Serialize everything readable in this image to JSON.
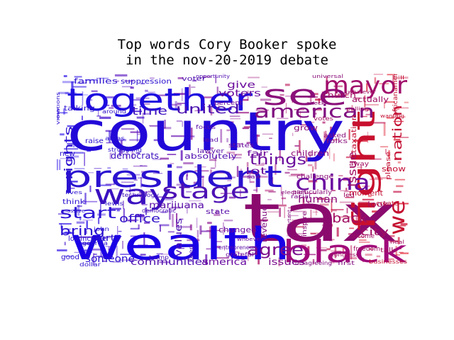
{
  "chart_data": {
    "type": "wordcloud",
    "title_lines": [
      "Top words Cory Booker spoke",
      "in the nov-20-2019 debate"
    ],
    "color_gradient": [
      "#1a00e6",
      "#8b0a8a",
      "#e01020"
    ],
    "words": [
      {
        "text": "country",
        "weight": 100,
        "color": "#2208d8"
      },
      {
        "text": "tax",
        "weight": 96,
        "color": "#8b0a6e"
      },
      {
        "text": "wealth",
        "weight": 72,
        "color": "#1a00e6"
      },
      {
        "text": "president",
        "weight": 58,
        "color": "#2a12d0"
      },
      {
        "text": "together",
        "weight": 56,
        "color": "#1e0be0"
      },
      {
        "text": "black",
        "weight": 50,
        "color": "#a0087a"
      },
      {
        "text": "see",
        "weight": 46,
        "color": "#8a0f7a"
      },
      {
        "text": "fight",
        "weight": 44,
        "color": "#c8102e"
      },
      {
        "text": "way",
        "weight": 40,
        "color": "#3a10c0"
      },
      {
        "text": "we",
        "weight": 36,
        "color": "#c41030"
      },
      {
        "text": "mayor",
        "weight": 34,
        "color": "#a00c6a"
      },
      {
        "text": "china",
        "weight": 30,
        "color": "#6a0aa0"
      },
      {
        "text": "stage",
        "weight": 28,
        "color": "#4c10b4"
      },
      {
        "text": "american",
        "weight": 26,
        "color": "#800e80"
      },
      {
        "text": "agree",
        "weight": 24,
        "color": "#7a0c8c"
      },
      {
        "text": "start",
        "weight": 21,
        "color": "#2a10d4"
      },
      {
        "text": "things",
        "weight": 20,
        "color": "#6a0c9c"
      },
      {
        "text": "nation",
        "weight": 19,
        "color": "#c41236"
      },
      {
        "text": "back",
        "weight": 18,
        "color": "#a00e62"
      },
      {
        "text": "united",
        "weight": 17,
        "color": "#4a10b0"
      },
      {
        "text": "time",
        "weight": 17,
        "color": "#3c10c0"
      },
      {
        "text": "issue",
        "weight": 16,
        "color": "#a00e62"
      },
      {
        "text": "rights",
        "weight": 16,
        "color": "#2a10d0"
      },
      {
        "text": "office",
        "weight": 15,
        "color": "#3010c8"
      },
      {
        "text": "bring",
        "weight": 15,
        "color": "#2a10d0"
      },
      {
        "text": "someone",
        "weight": 13,
        "color": "#2a10d0"
      },
      {
        "text": "communities",
        "weight": 13,
        "color": "#5010b0"
      },
      {
        "text": "america",
        "weight": 13,
        "color": "#6a0ca0"
      },
      {
        "text": "marijuana",
        "weight": 12,
        "color": "#5a10a8"
      },
      {
        "text": "values",
        "weight": 12,
        "color": "#4a10b4"
      },
      {
        "text": "city",
        "weight": 13,
        "color": "#a00e62"
      },
      {
        "text": "human",
        "weight": 13,
        "color": "#8a0e7a"
      },
      {
        "text": "issues",
        "weight": 12,
        "color": "#7a0c8c"
      },
      {
        "text": "give",
        "weight": 12,
        "color": "#6a0c9c"
      },
      {
        "text": "voters",
        "weight": 12,
        "color": "#6a0c9c"
      },
      {
        "text": "lot",
        "weight": 12,
        "color": "#6a0c9c"
      },
      {
        "text": "party",
        "weight": 11,
        "color": "#2a10d0"
      },
      {
        "text": "democrats",
        "weight": 11,
        "color": "#3c10c0"
      },
      {
        "text": "changed",
        "weight": 11,
        "color": "#6a0c9c"
      },
      {
        "text": "revenue",
        "weight": 11,
        "color": "#800e80"
      },
      {
        "text": "families",
        "weight": 10,
        "color": "#2a10d0"
      },
      {
        "text": "absolutely",
        "weight": 10,
        "color": "#5010b0"
      },
      {
        "text": "church",
        "weight": 10,
        "color": "#a00e62"
      },
      {
        "text": "actually",
        "weight": 10,
        "color": "#a00e62"
      },
      {
        "text": "show",
        "weight": 10,
        "color": "#c41236"
      },
      {
        "text": "look",
        "weight": 10,
        "color": "#a00e62"
      },
      {
        "text": "moment",
        "weight": 10,
        "color": "#c41236"
      },
      {
        "text": "children",
        "weight": 10,
        "color": "#8a0e7a"
      },
      {
        "text": "grow",
        "weight": 10,
        "color": "#8a0e7a"
      },
      {
        "text": "fair",
        "weight": 10,
        "color": "#6a0c9c"
      },
      {
        "text": "state",
        "weight": 9,
        "color": "#5a10a8"
      },
      {
        "text": "taxation",
        "weight": 9,
        "color": "#c41236"
      },
      {
        "text": "suppression",
        "weight": 9,
        "color": "#2a10d0"
      },
      {
        "text": "talking",
        "weight": 9,
        "color": "#2a10d0"
      },
      {
        "text": "lowincome",
        "weight": 9,
        "color": "#2a10d0"
      },
      {
        "text": "raise",
        "weight": 9,
        "color": "#2a10d0"
      },
      {
        "text": "new",
        "weight": 9,
        "color": "#2a10d0"
      },
      {
        "text": "think",
        "weight": 9,
        "color": "#2a10d0"
      },
      {
        "text": "good",
        "weight": 9,
        "color": "#2a10d0"
      },
      {
        "text": "voter",
        "weight": 9,
        "color": "#5010b0"
      },
      {
        "text": "lawyer",
        "weight": 9,
        "color": "#5a10a8"
      },
      {
        "text": "asked",
        "weight": 9,
        "color": "#8a0e7a"
      },
      {
        "text": "folks",
        "weight": 9,
        "color": "#8a0e7a"
      },
      {
        "text": "away",
        "weight": 9,
        "color": "#a00e62"
      },
      {
        "text": "income",
        "weight": 9,
        "color": "#a00e62"
      },
      {
        "text": "states",
        "weight": 9,
        "color": "#6a0c9c"
      },
      {
        "text": "africanamerican",
        "weight": 8,
        "color": "#c41236"
      },
      {
        "text": "percent",
        "weight": 8,
        "color": "#6a0c9c"
      },
      {
        "text": "please",
        "weight": 8,
        "color": "#c41236"
      },
      {
        "text": "challenge",
        "weight": 8,
        "color": "#8a0e7a"
      },
      {
        "text": "particularly",
        "weight": 8,
        "color": "#8a0e7a"
      },
      {
        "text": "inspire",
        "weight": 8,
        "color": "#8a0e7a"
      },
      {
        "text": "create",
        "weight": 8,
        "color": "#c41236"
      },
      {
        "text": "freedom",
        "weight": 8,
        "color": "#a00e62"
      },
      {
        "text": "talk",
        "weight": 8,
        "color": "#a00e62"
      },
      {
        "text": "businesses",
        "weight": 7,
        "color": "#c41236"
      },
      {
        "text": "first",
        "weight": 7,
        "color": "#800e80"
      },
      {
        "text": "disagreeing",
        "weight": 7,
        "color": "#800e80"
      },
      {
        "text": "georgia",
        "weight": 7,
        "color": "#2a10d0"
      },
      {
        "text": "dollar",
        "weight": 7,
        "color": "#2a10d0"
      },
      {
        "text": "allies",
        "weight": 7,
        "color": "#2a10d0"
      },
      {
        "text": "struggling",
        "weight": 7,
        "color": "#2a10d0"
      },
      {
        "text": "around",
        "weight": 7,
        "color": "#3010c8"
      },
      {
        "text": "john",
        "weight": 7,
        "color": "#2a10d0"
      },
      {
        "text": "lewis",
        "weight": 7,
        "color": "#3010c8"
      },
      {
        "text": "democratic",
        "weight": 7,
        "color": "#4a10b4"
      },
      {
        "text": "technology",
        "weight": 7,
        "color": "#4010bc"
      },
      {
        "text": "keep",
        "weight": 7,
        "color": "#4a10b4"
      },
      {
        "text": "trump",
        "weight": 7,
        "color": "#4a10b4"
      },
      {
        "text": "entrepreneurs",
        "weight": 7,
        "color": "#5a10a8"
      },
      {
        "text": "grateful",
        "weight": 7,
        "color": "#6a0c9c"
      },
      {
        "text": "opportunity",
        "weight": 7,
        "color": "#5010b0"
      },
      {
        "text": "focus",
        "weight": 7,
        "color": "#5a10a8"
      },
      {
        "text": "lead",
        "weight": 7,
        "color": "#5a10a8"
      },
      {
        "text": "saw",
        "weight": 7,
        "color": "#6a0c9c"
      },
      {
        "text": "racial",
        "weight": 7,
        "color": "#7a0c8c"
      },
      {
        "text": "votes",
        "weight": 7,
        "color": "#a00e62"
      },
      {
        "text": "whatever",
        "weight": 6,
        "color": "#a00e62"
      },
      {
        "text": "election",
        "weight": 6,
        "color": "#8a0e7a"
      },
      {
        "text": "whoever",
        "weight": 6,
        "color": "#6a0c9c"
      },
      {
        "text": "heal",
        "weight": 6,
        "color": "#a00e62"
      },
      {
        "text": "wanting",
        "weight": 6,
        "color": "#c41236"
      },
      {
        "text": "pulling",
        "weight": 6,
        "color": "#a00e62"
      },
      {
        "text": "universal",
        "weight": 6,
        "color": "#8a0e7a"
      },
      {
        "text": "check",
        "weight": 6,
        "color": "#8a0e7a"
      },
      {
        "text": "massive",
        "weight": 6,
        "color": "#2a10d0"
      },
      {
        "text": "lives",
        "weight": 6,
        "color": "#2a10d0"
      },
      {
        "text": "violations",
        "weight": 6,
        "color": "#2a10d0"
      },
      {
        "text": "congress",
        "weight": 6,
        "color": "#a00e62"
      },
      {
        "text": "important",
        "weight": 6,
        "color": "#800e80"
      },
      {
        "text": "led",
        "weight": 6,
        "color": "#a00e62"
      },
      {
        "text": "bill",
        "weight": 6,
        "color": "#c41236"
      }
    ]
  }
}
